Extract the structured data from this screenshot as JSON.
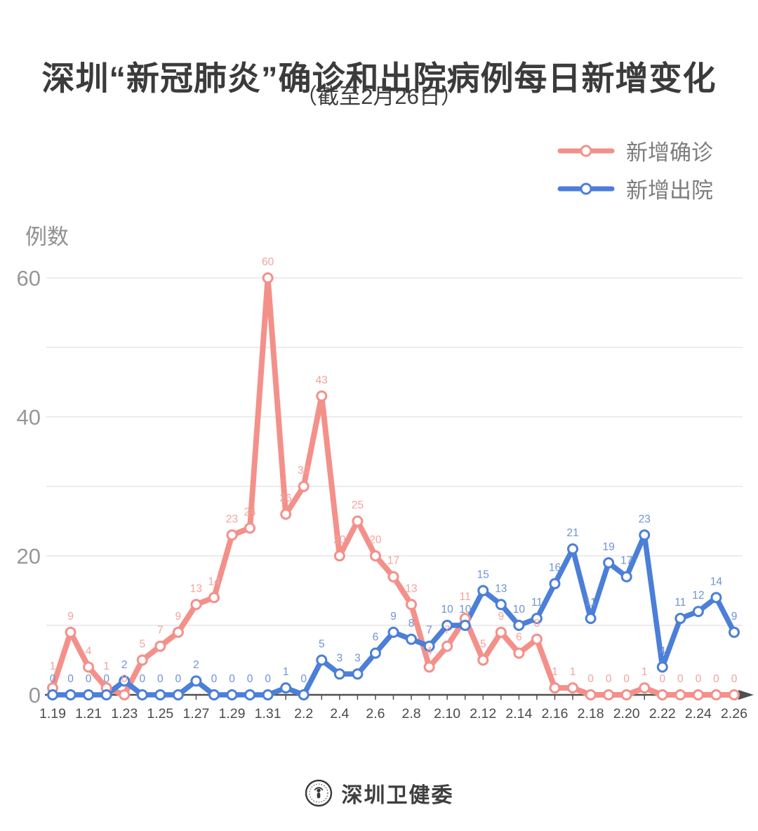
{
  "title": "深圳“新冠肺炎”确诊和出院病例每日新增变化",
  "subtitle": "（截至2月26日）",
  "footer": {
    "brand": "深圳卫健委",
    "logo": "shenzhen-health-commission-seal"
  },
  "chart_data": {
    "type": "line",
    "title": "深圳“新冠肺炎”确诊和出院病例每日新增变化（截至2月26日）",
    "xlabel": "",
    "ylabel": "例数",
    "ylim": [
      0,
      60
    ],
    "y_ticks": [
      0,
      20,
      40,
      60
    ],
    "grid_values": [
      10,
      20,
      30,
      40,
      50,
      60
    ],
    "data_labels": true,
    "legend_position": "top-right",
    "x": [
      "1.19",
      "1.20",
      "1.21",
      "1.22",
      "1.23",
      "1.24",
      "1.25",
      "1.26",
      "1.27",
      "1.28",
      "1.29",
      "1.30",
      "1.31",
      "2.1",
      "2.2",
      "2.3",
      "2.4",
      "2.5",
      "2.6",
      "2.7",
      "2.8",
      "2.9",
      "2.10",
      "2.11",
      "2.12",
      "2.13",
      "2.14",
      "2.15",
      "2.16",
      "2.17",
      "2.18",
      "2.19",
      "2.20",
      "2.21",
      "2.22",
      "2.23",
      "2.24",
      "2.25",
      "2.26"
    ],
    "x_tick_labels": [
      "1.19",
      "1.21",
      "1.23",
      "1.25",
      "1.27",
      "1.29",
      "1.31",
      "2.2",
      "2.4",
      "2.6",
      "2.8",
      "2.10",
      "2.12",
      "2.14",
      "2.16",
      "2.18",
      "2.20",
      "2.22",
      "2.24",
      "2.26"
    ],
    "series": [
      {
        "key": "confirmed",
        "name": "新增确诊",
        "color": "#F4908A",
        "label_color": "#F2A49D",
        "values": [
          1,
          9,
          4,
          1,
          0,
          5,
          7,
          9,
          13,
          14,
          23,
          24,
          60,
          26,
          30,
          43,
          20,
          25,
          20,
          17,
          13,
          4,
          7,
          11,
          5,
          9,
          6,
          8,
          1,
          1,
          0,
          0,
          0,
          1,
          0,
          0,
          0,
          0,
          0
        ]
      },
      {
        "key": "discharged",
        "name": "新增出院",
        "color": "#4B7FD8",
        "label_color": "#6E92D8",
        "values": [
          0,
          0,
          0,
          0,
          2,
          0,
          0,
          0,
          2,
          0,
          0,
          0,
          0,
          1,
          0,
          5,
          3,
          3,
          6,
          9,
          8,
          7,
          10,
          10,
          15,
          13,
          10,
          11,
          16,
          21,
          11,
          19,
          17,
          23,
          4,
          11,
          12,
          14,
          9
        ]
      }
    ]
  }
}
